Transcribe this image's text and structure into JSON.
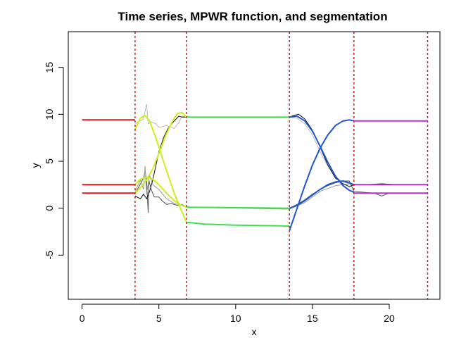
{
  "chart_data": {
    "type": "line",
    "title": "Time series, MPWR function, and segmentation",
    "xlabel": "x",
    "ylabel": "y",
    "xlim": [
      -0.9,
      23.3
    ],
    "ylim": [
      -9.7,
      18.8
    ],
    "xticks": [
      0,
      5,
      10,
      15,
      20
    ],
    "yticks": [
      -5,
      0,
      5,
      10,
      15
    ],
    "grid": false,
    "change_points": [
      3.45,
      6.8,
      13.5,
      17.7,
      22.5
    ],
    "regimes": [
      {
        "x": [
          0,
          3.45
        ],
        "color": "#e31a1c"
      },
      {
        "x": [
          3.45,
          6.8
        ],
        "color": "#c8f01e"
      },
      {
        "x": [
          6.8,
          13.5
        ],
        "color": "#3fe04f"
      },
      {
        "x": [
          13.5,
          17.7
        ],
        "color": "#1f56d6"
      },
      {
        "x": [
          17.7,
          22.5
        ],
        "color": "#b133d6"
      }
    ],
    "series": [
      {
        "points": [
          [
            3.45,
            1.6
          ],
          [
            3.6,
            2.0
          ],
          [
            3.8,
            2.6
          ],
          [
            4.0,
            3.2
          ],
          [
            4.1,
            3.9
          ],
          [
            4.2,
            3.0
          ],
          [
            4.3,
            -0.5
          ],
          [
            4.35,
            3.0
          ],
          [
            4.5,
            2.0
          ],
          [
            4.7,
            1.2
          ],
          [
            5.0,
            1.2
          ],
          [
            5.2,
            0.8
          ],
          [
            5.5,
            0.4
          ],
          [
            5.8,
            0.5
          ],
          [
            6.2,
            0.3
          ],
          [
            6.5,
            0.4
          ],
          [
            6.8,
            0.1
          ],
          [
            13.5,
            0.0
          ],
          [
            14.0,
            0.4
          ],
          [
            14.5,
            0.9
          ],
          [
            15.0,
            1.5
          ],
          [
            15.5,
            2.0
          ],
          [
            16.0,
            2.4
          ],
          [
            16.5,
            2.7
          ],
          [
            17.0,
            2.9
          ],
          [
            17.4,
            2.9
          ],
          [
            17.7,
            1.8
          ],
          [
            18.3,
            1.7
          ],
          [
            19.0,
            1.6
          ],
          [
            19.5,
            1.3
          ],
          [
            20.0,
            1.6
          ],
          [
            21.0,
            1.6
          ],
          [
            22.5,
            1.6
          ]
        ],
        "color": "#555555"
      },
      {
        "points": [
          [
            3.45,
            1.8
          ],
          [
            3.8,
            3.0
          ],
          [
            4.0,
            2.0
          ],
          [
            4.1,
            4.5
          ],
          [
            4.2,
            1.5
          ],
          [
            4.4,
            3.5
          ],
          [
            4.6,
            2.5
          ],
          [
            5.0,
            2.0
          ],
          [
            5.5,
            1.0
          ],
          [
            6.0,
            0.5
          ],
          [
            6.5,
            0.3
          ],
          [
            6.8,
            0.1
          ],
          [
            13.5,
            -0.1
          ],
          [
            14.5,
            0.6
          ],
          [
            15.5,
            1.8
          ],
          [
            16.5,
            2.4
          ],
          [
            17.4,
            2.6
          ],
          [
            17.7,
            2.5
          ],
          [
            22.5,
            2.5
          ]
        ],
        "color": "#999999"
      },
      {
        "points": [
          [
            3.45,
            9.0
          ],
          [
            3.8,
            9.3
          ],
          [
            4.0,
            9.5
          ],
          [
            4.2,
            11.1
          ],
          [
            4.3,
            9.0
          ],
          [
            4.5,
            9.2
          ],
          [
            4.8,
            9.0
          ],
          [
            5.0,
            8.6
          ],
          [
            5.5,
            8.8
          ],
          [
            6.0,
            8.5
          ],
          [
            6.3,
            9.1
          ],
          [
            6.5,
            9.8
          ],
          [
            6.8,
            9.7
          ],
          [
            13.5,
            9.7
          ],
          [
            14.0,
            9.6
          ],
          [
            14.5,
            9.0
          ],
          [
            15.0,
            7.8
          ],
          [
            15.5,
            6.0
          ],
          [
            16.0,
            4.5
          ],
          [
            16.5,
            3.3
          ],
          [
            17.0,
            2.8
          ],
          [
            17.4,
            2.6
          ],
          [
            17.7,
            2.5
          ],
          [
            22.5,
            2.5
          ]
        ],
        "color": "#bbbbbb"
      },
      {
        "points": [
          [
            3.45,
            1.3
          ],
          [
            3.8,
            1.0
          ],
          [
            4.0,
            1.5
          ],
          [
            4.2,
            1.0
          ],
          [
            4.4,
            1.8
          ],
          [
            4.6,
            3.0
          ],
          [
            4.8,
            4.5
          ],
          [
            5.0,
            6.0
          ],
          [
            5.3,
            7.5
          ],
          [
            5.6,
            8.5
          ],
          [
            6.0,
            9.3
          ],
          [
            6.3,
            9.8
          ],
          [
            6.5,
            9.7
          ],
          [
            6.8,
            9.7
          ],
          [
            13.5,
            9.7
          ],
          [
            13.8,
            9.9
          ],
          [
            14.1,
            10.0
          ],
          [
            14.5,
            9.5
          ],
          [
            15.0,
            8.3
          ],
          [
            15.5,
            6.5
          ],
          [
            16.0,
            4.6
          ],
          [
            16.5,
            3.2
          ],
          [
            17.0,
            2.6
          ],
          [
            17.4,
            2.3
          ],
          [
            17.7,
            2.5
          ],
          [
            18.5,
            2.5
          ],
          [
            19.5,
            2.6
          ],
          [
            20.5,
            2.5
          ],
          [
            22.5,
            2.5
          ]
        ],
        "color": "#111111"
      },
      {
        "name": "",
        "points": [
          [
            6.8,
            9.7
          ],
          [
            13.5,
            9.7
          ]
        ],
        "color": "#3fe04f"
      },
      {
        "points": [
          [
            6.8,
            0.1
          ],
          [
            13.5,
            0.0
          ]
        ],
        "color": "#3fe04f"
      },
      {
        "points": [
          [
            6.8,
            -1.5
          ],
          [
            8.0,
            -1.7
          ],
          [
            10.0,
            -1.8
          ],
          [
            13.5,
            -1.9
          ]
        ],
        "color": "#3fe04f"
      }
    ],
    "fits": [
      {
        "color": "#e31a1c",
        "points": [
          [
            0,
            9.4
          ],
          [
            3.45,
            9.4
          ]
        ]
      },
      {
        "color": "#e31a1c",
        "points": [
          [
            0,
            2.5
          ],
          [
            3.45,
            2.5
          ]
        ]
      },
      {
        "color": "#e31a1c",
        "points": [
          [
            0,
            1.6
          ],
          [
            3.45,
            1.6
          ]
        ]
      },
      {
        "color": "#c8f01e",
        "points": [
          [
            3.45,
            8.4
          ],
          [
            3.8,
            9.6
          ],
          [
            4.1,
            9.9
          ],
          [
            4.4,
            9.3
          ],
          [
            4.8,
            7.5
          ],
          [
            5.2,
            5.5
          ],
          [
            5.6,
            3.5
          ],
          [
            6.0,
            1.6
          ],
          [
            6.4,
            0.0
          ],
          [
            6.8,
            -1.5
          ]
        ]
      },
      {
        "color": "#c8f01e",
        "points": [
          [
            3.45,
            2.5
          ],
          [
            3.8,
            3.1
          ],
          [
            4.2,
            3.3
          ],
          [
            4.6,
            3.1
          ],
          [
            5.0,
            2.5
          ],
          [
            5.5,
            1.6
          ],
          [
            6.0,
            0.8
          ],
          [
            6.5,
            0.3
          ],
          [
            6.8,
            0.1
          ]
        ]
      },
      {
        "color": "#c8f01e",
        "points": [
          [
            3.45,
            1.6
          ],
          [
            3.8,
            2.2
          ],
          [
            4.2,
            3.0
          ],
          [
            4.6,
            4.2
          ],
          [
            5.0,
            5.8
          ],
          [
            5.4,
            7.6
          ],
          [
            5.8,
            9.0
          ],
          [
            6.2,
            10.1
          ],
          [
            6.5,
            10.2
          ],
          [
            6.8,
            9.7
          ]
        ]
      },
      {
        "color": "#3fe04f",
        "points": [
          [
            6.8,
            9.7
          ],
          [
            13.5,
            9.7
          ]
        ]
      },
      {
        "color": "#3fe04f",
        "points": [
          [
            6.8,
            0.1
          ],
          [
            13.5,
            0.0
          ]
        ]
      },
      {
        "color": "#3fe04f",
        "points": [
          [
            6.8,
            -1.5
          ],
          [
            8.0,
            -1.7
          ],
          [
            10.0,
            -1.8
          ],
          [
            13.5,
            -1.9
          ]
        ]
      },
      {
        "color": "#1f56d6",
        "points": [
          [
            13.5,
            -2.4
          ],
          [
            14.0,
            0.0
          ],
          [
            14.5,
            2.4
          ],
          [
            15.0,
            4.6
          ],
          [
            15.5,
            6.4
          ],
          [
            16.0,
            7.8
          ],
          [
            16.5,
            8.8
          ],
          [
            17.0,
            9.3
          ],
          [
            17.4,
            9.4
          ],
          [
            17.7,
            9.3
          ]
        ]
      },
      {
        "color": "#1f56d6",
        "points": [
          [
            13.5,
            0.0
          ],
          [
            14.0,
            0.3
          ],
          [
            14.5,
            0.8
          ],
          [
            15.0,
            1.4
          ],
          [
            15.5,
            2.0
          ],
          [
            16.0,
            2.5
          ],
          [
            16.5,
            2.8
          ],
          [
            17.0,
            2.9
          ],
          [
            17.4,
            2.7
          ],
          [
            17.7,
            2.5
          ]
        ]
      },
      {
        "color": "#1f56d6",
        "points": [
          [
            13.5,
            9.7
          ],
          [
            14.0,
            9.8
          ],
          [
            14.5,
            9.3
          ],
          [
            15.0,
            8.2
          ],
          [
            15.5,
            6.6
          ],
          [
            16.0,
            4.9
          ],
          [
            16.5,
            3.4
          ],
          [
            17.0,
            2.4
          ],
          [
            17.4,
            1.9
          ],
          [
            17.7,
            1.7
          ]
        ]
      },
      {
        "color": "#b133d6",
        "points": [
          [
            17.7,
            9.3
          ],
          [
            22.5,
            9.3
          ]
        ]
      },
      {
        "color": "#b133d6",
        "points": [
          [
            17.7,
            2.5
          ],
          [
            22.5,
            2.5
          ]
        ]
      },
      {
        "color": "#b133d6",
        "points": [
          [
            17.7,
            1.6
          ],
          [
            22.5,
            1.6
          ]
        ]
      }
    ]
  }
}
